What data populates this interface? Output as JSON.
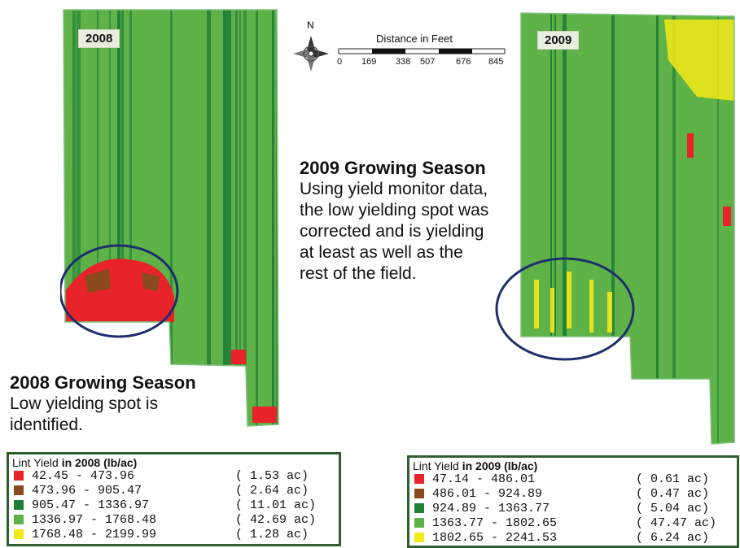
{
  "map_2008": {
    "year_label": "2008",
    "season_title": "2008 Growing Season",
    "season_desc_lines": [
      "Low yielding spot is",
      "identified."
    ]
  },
  "map_2009": {
    "year_label": "2009",
    "season_title": "2009 Growing Season",
    "season_desc_lines": [
      "Using yield monitor data,",
      "the low yielding spot was",
      "corrected and is yielding",
      "at least as well as the",
      "rest of the field."
    ]
  },
  "compass": {
    "north_label": "N"
  },
  "scale_bar": {
    "title": "Distance in Feet",
    "ticks": [
      "0",
      "169",
      "338",
      "507",
      "676",
      "845"
    ]
  },
  "colors": {
    "class1": "#e8232a",
    "class2": "#8b4a1c",
    "class3": "#1e7d36",
    "class4": "#5fb247",
    "class5": "#f3e918",
    "circle": "#1d2f6b",
    "legend_border": "#2f5f2f"
  },
  "legend_2008": {
    "title_prefix": "Lint Yield",
    "title_bold": " in 2008 (lb/ac)",
    "rows": [
      {
        "range": "42.45 - 473.96",
        "area": "( 1.53 ac)"
      },
      {
        "range": "473.96 - 905.47",
        "area": "( 2.64 ac)"
      },
      {
        "range": "905.47 - 1336.97",
        "area": "( 11.01 ac)"
      },
      {
        "range": "1336.97 - 1768.48",
        "area": "( 42.69 ac)"
      },
      {
        "range": "1768.48 - 2199.99",
        "area": "( 1.28 ac)"
      }
    ]
  },
  "legend_2009": {
    "title_prefix": "Lint Yield",
    "title_bold": " in 2009 (lb/ac)",
    "rows": [
      {
        "range": "47.14 - 486.01",
        "area": "( 0.61 ac)"
      },
      {
        "range": "486.01 - 924.89",
        "area": "( 0.47 ac)"
      },
      {
        "range": "924.89 - 1363.77",
        "area": "( 5.04 ac)"
      },
      {
        "range": "1363.77 - 1802.65",
        "area": "( 47.47 ac)"
      },
      {
        "range": "1802.65 - 2241.53",
        "area": "( 6.24 ac)"
      }
    ]
  }
}
